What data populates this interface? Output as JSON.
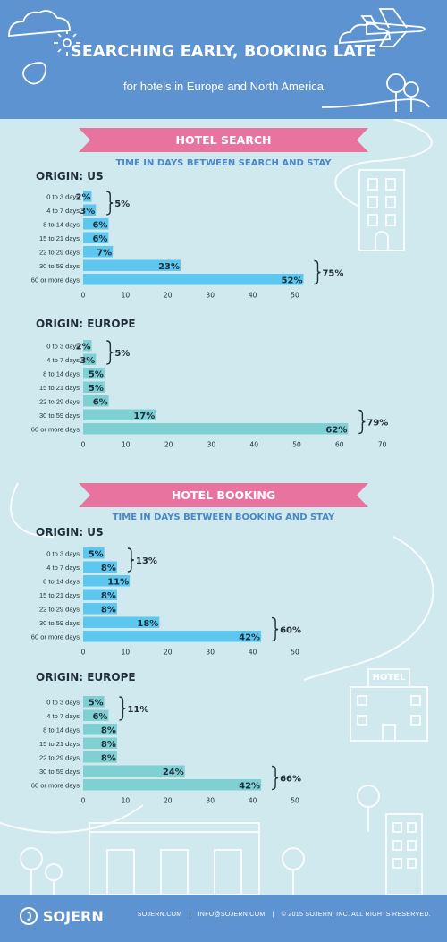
{
  "header": {
    "title": "SEARCHING EARLY, BOOKING LATE",
    "subtitle": "for hotels in Europe and North America"
  },
  "sections": {
    "search": {
      "ribbon": "HOTEL SEARCH",
      "subtitle": "TIME IN DAYS BETWEEN SEARCH AND STAY"
    },
    "booking": {
      "ribbon": "HOTEL BOOKING",
      "subtitle": "TIME IN DAYS BETWEEN BOOKING AND STAY"
    }
  },
  "decor": {
    "hotel_sign": "HOTEL"
  },
  "footer": {
    "brand": "SOJERN",
    "website": "SOJERN.COM",
    "email": "INFO@SOJERN.COM",
    "copyright": "© 2015  SOJERN, INC. ALL RIGHTS RESERVED.",
    "separator": "|"
  },
  "colors": {
    "background": "#cfe9ee",
    "header": "#5d93d1",
    "ribbon": "#e9739f",
    "us_bars": "#5cc8f0",
    "europe_bars": "#7fd0d3"
  },
  "chart_data": [
    {
      "type": "bar",
      "orientation": "horizontal",
      "title": "ORIGIN: US",
      "categories": [
        "0 to 3 days",
        "4 to 7 days",
        "8 to 14 days",
        "15 to 21 days",
        "22 to 29 days",
        "30 to 59 days",
        "60 or more days"
      ],
      "values": [
        2,
        3,
        6,
        6,
        7,
        23,
        52
      ],
      "value_labels": [
        "2%",
        "3%",
        "6%",
        "6%",
        "7%",
        "23%",
        "52%"
      ],
      "x_ticks": [
        0,
        10,
        20,
        30,
        40,
        50
      ],
      "xlim": [
        0,
        55
      ],
      "brackets": [
        {
          "from": 0,
          "to": 1,
          "label": "5%"
        },
        {
          "from": 5,
          "to": 6,
          "label": "75%"
        }
      ],
      "bar_color": "#5cc8f0"
    },
    {
      "type": "bar",
      "orientation": "horizontal",
      "title": "ORIGIN: EUROPE",
      "categories": [
        "0 to 3 days",
        "4 to 7 days",
        "8 to 14 days",
        "15 to 21 days",
        "22 to 29 days",
        "30 to 59 days",
        "60 or more days"
      ],
      "values": [
        2,
        3,
        5,
        5,
        6,
        17,
        62
      ],
      "value_labels": [
        "2%",
        "3%",
        "5%",
        "5%",
        "6%",
        "17%",
        "62%"
      ],
      "x_ticks": [
        0,
        10,
        20,
        30,
        40,
        50,
        60,
        70
      ],
      "xlim": [
        0,
        70
      ],
      "brackets": [
        {
          "from": 0,
          "to": 1,
          "label": "5%"
        },
        {
          "from": 5,
          "to": 6,
          "label": "79%"
        }
      ],
      "bar_color": "#7fd0d3"
    },
    {
      "type": "bar",
      "orientation": "horizontal",
      "title": "ORIGIN: US",
      "categories": [
        "0 to 3 days",
        "4 to 7 days",
        "8 to 14 days",
        "15 to 21 days",
        "22 to 29 days",
        "30 to 59 days",
        "60 or more days"
      ],
      "values": [
        5,
        8,
        11,
        8,
        8,
        18,
        42
      ],
      "value_labels": [
        "5%",
        "8%",
        "11%",
        "8%",
        "8%",
        "18%",
        "42%"
      ],
      "x_ticks": [
        0,
        10,
        20,
        30,
        40,
        50
      ],
      "xlim": [
        0,
        50
      ],
      "brackets": [
        {
          "from": 0,
          "to": 1,
          "label": "13%"
        },
        {
          "from": 5,
          "to": 6,
          "label": "60%"
        }
      ],
      "bar_color": "#5cc8f0"
    },
    {
      "type": "bar",
      "orientation": "horizontal",
      "title": "ORIGIN: EUROPE",
      "categories": [
        "0 to 3 days",
        "4 to 7 days",
        "8 to 14 days",
        "15 to 21 days",
        "22 to 29 days",
        "30 to 59 days",
        "60 or more days"
      ],
      "values": [
        5,
        6,
        8,
        8,
        8,
        24,
        42
      ],
      "value_labels": [
        "5%",
        "6%",
        "8%",
        "8%",
        "8%",
        "24%",
        "42%"
      ],
      "x_ticks": [
        0,
        10,
        20,
        30,
        40,
        50
      ],
      "xlim": [
        0,
        50
      ],
      "brackets": [
        {
          "from": 0,
          "to": 1,
          "label": "11%"
        },
        {
          "from": 5,
          "to": 6,
          "label": "66%"
        }
      ],
      "bar_color": "#7fd0d3"
    }
  ]
}
